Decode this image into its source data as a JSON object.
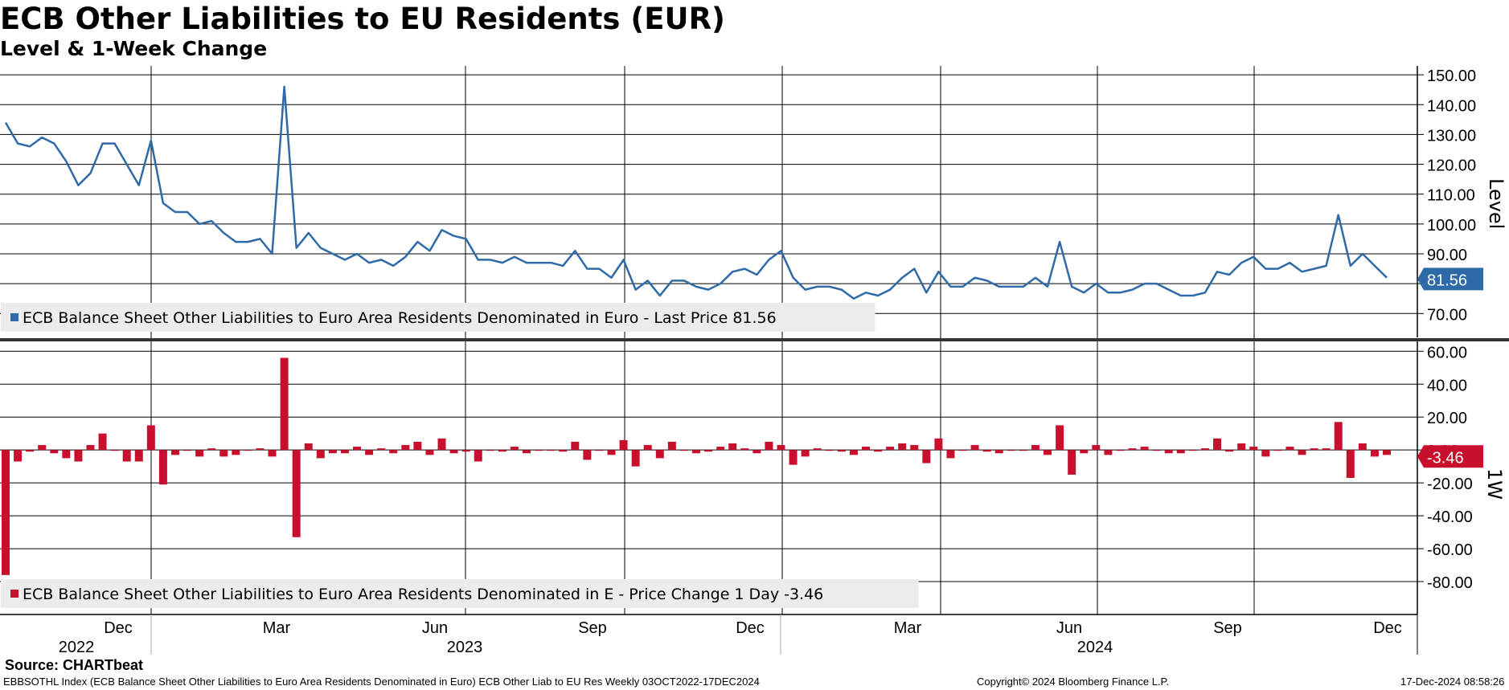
{
  "title": "ECB Other Liabilities to EU Residents (EUR)",
  "subtitle": "Level & 1-Week Change",
  "source": "Source: CHARTbeat",
  "footer": {
    "left": "EBBSOTHL Index (ECB Balance Sheet Other Liabilities to Euro Area Residents Denominated in Euro) ECB Other Liab to EU Res  Weekly 03OCT2022-17DEC2024",
    "center": "Copyright© 2024 Bloomberg Finance L.P.",
    "right": "17-Dec-2024 08:58:26"
  },
  "chart_data": [
    {
      "type": "line",
      "panel": "top",
      "ylabel": "Level",
      "ylim": [
        62,
        153
      ],
      "yticks": [
        "150.00",
        "140.00",
        "130.00",
        "120.00",
        "110.00",
        "100.00",
        "90.00",
        "80.00",
        "70.00"
      ],
      "legend": "ECB Balance Sheet Other Liabilities to Euro Area Residents Denominated in Euro - Last Price 81.56",
      "last_label": "81.56",
      "color": "#2e6aa8",
      "series": [
        {
          "values": [
            134,
            127,
            126,
            129,
            127,
            121,
            113,
            117,
            127,
            127,
            120,
            113,
            128,
            107,
            104,
            104,
            100,
            101,
            97,
            94,
            94,
            95,
            90,
            146,
            92,
            97,
            92,
            90,
            88,
            90,
            87,
            88,
            86,
            89,
            94,
            91,
            98,
            96,
            95,
            88,
            88,
            87,
            89,
            87,
            87,
            87,
            86,
            91,
            85,
            85,
            82,
            88,
            78,
            81,
            76,
            81,
            81,
            79,
            78,
            80,
            84,
            85,
            83,
            88,
            91,
            82,
            78,
            79,
            79,
            78,
            75,
            77,
            76,
            78,
            82,
            85,
            77,
            84,
            79,
            79,
            82,
            81,
            79,
            79,
            79,
            82,
            79,
            94,
            79,
            77,
            80,
            77,
            77,
            78,
            80,
            80,
            78,
            76,
            76,
            77,
            84,
            83,
            87,
            89,
            85,
            85,
            87,
            84,
            85,
            86,
            103,
            86,
            90,
            86,
            82
          ]
        }
      ],
      "grid": true
    },
    {
      "type": "bar",
      "panel": "bottom",
      "ylabel": "1W",
      "ylim": [
        -100,
        66
      ],
      "yticks": [
        "60.00",
        "40.00",
        "20.00",
        "0.00",
        "-20.00",
        "-40.00",
        "-60.00",
        "-80.00"
      ],
      "legend": "ECB Balance Sheet Other Liabilities to Euro Area Residents Denominated in E - Price Change 1 Day -3.46",
      "last_label": "-3.46",
      "color": "#c8102e",
      "series": [
        {
          "values": [
            -76,
            -7,
            -1,
            3,
            -2,
            -5,
            -7,
            3,
            10,
            0,
            -7,
            -7,
            15,
            -21,
            -3,
            0,
            -4,
            1,
            -4,
            -3,
            0,
            1,
            -4,
            56,
            -53,
            4,
            -5,
            -2,
            -2,
            2,
            -3,
            1,
            -2,
            3,
            5,
            -3,
            7,
            -2,
            -1,
            -7,
            0,
            -1,
            2,
            -2,
            0,
            0,
            -1,
            5,
            -6,
            0,
            -3,
            6,
            -10,
            3,
            -5,
            5,
            0,
            -2,
            -1,
            2,
            4,
            1,
            -2,
            5,
            3,
            -9,
            -4,
            1,
            0,
            -1,
            -3,
            2,
            -1,
            2,
            4,
            3,
            -8,
            7,
            -5,
            0,
            3,
            -1,
            -2,
            0,
            0,
            3,
            -3,
            15,
            -15,
            -2,
            3,
            -3,
            0,
            1,
            2,
            0,
            -2,
            -2,
            0,
            1,
            7,
            -1,
            4,
            2,
            -4,
            0,
            2,
            -3,
            1,
            1,
            17,
            -17,
            4,
            -4,
            -3
          ]
        }
      ],
      "grid": true
    }
  ],
  "x_axis": {
    "months": [
      "Dec",
      "Mar",
      "Jun",
      "Sep",
      "Dec",
      "Mar",
      "Jun",
      "Sep",
      "Dec"
    ],
    "years": [
      "2022",
      "2023",
      "2024"
    ]
  }
}
